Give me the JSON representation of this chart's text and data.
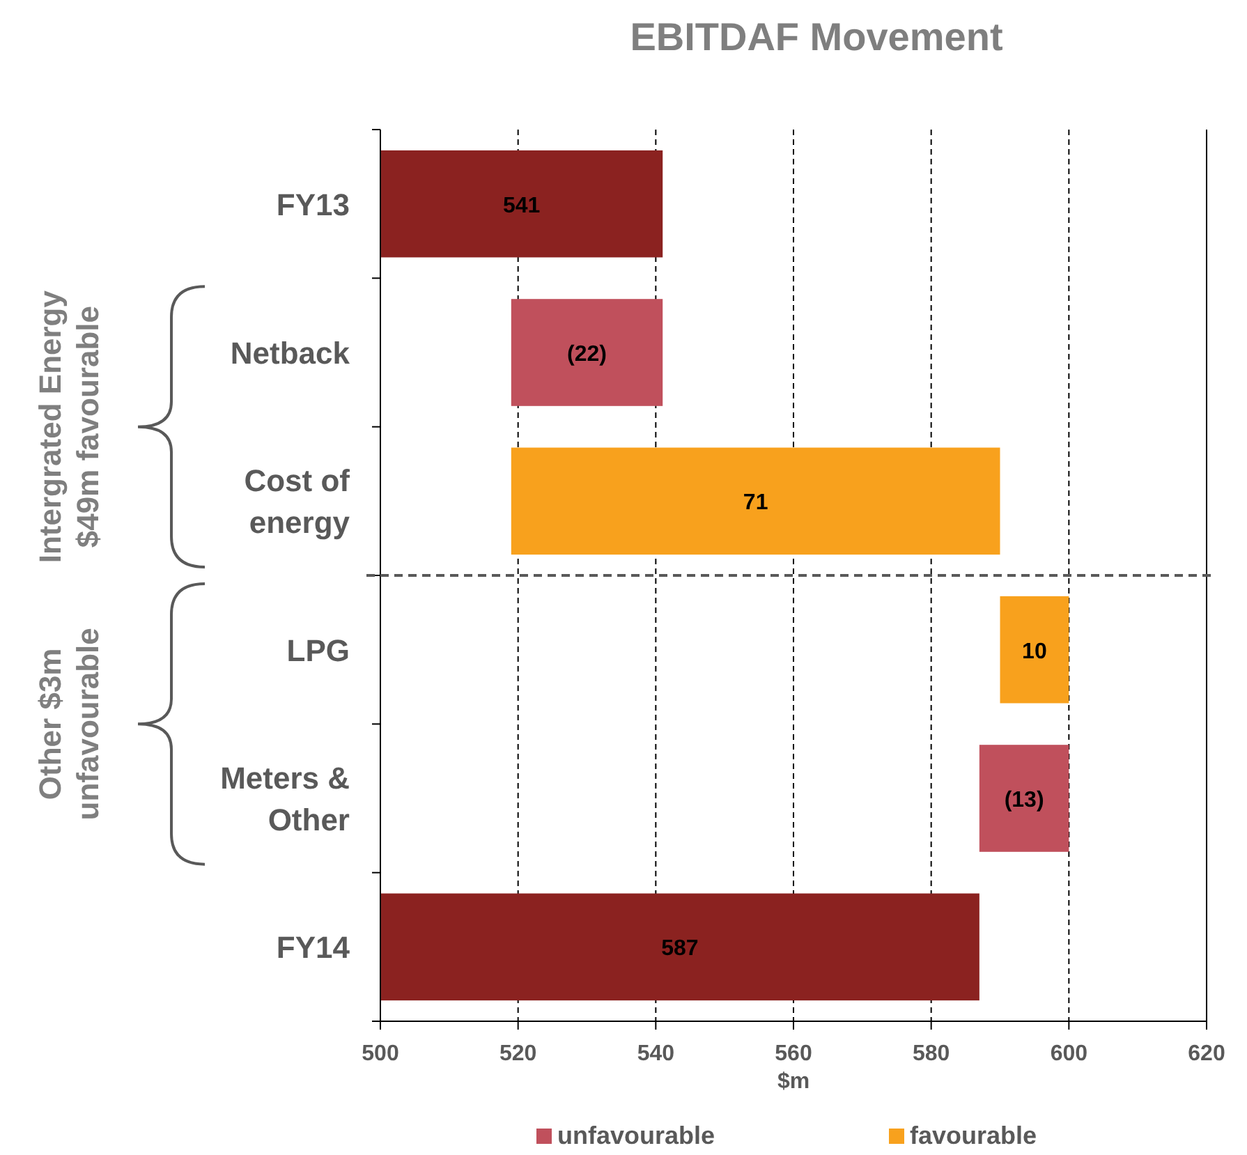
{
  "chart_data": {
    "type": "bar",
    "orientation": "horizontal",
    "title": "EBITDAF Movement",
    "xlabel": "$m",
    "categories": [
      "FY13",
      "Netback",
      "Cost of energy",
      "LPG",
      "Meters & Other",
      "FY14"
    ],
    "series": [
      {
        "color": "#8b2220",
        "values": [
          41,
          null,
          null,
          null,
          null,
          87
        ],
        "base": [
          500,
          null,
          null,
          null,
          null,
          500
        ],
        "value_labels": [
          "541",
          null,
          null,
          null,
          null,
          "587"
        ]
      },
      {
        "name": "unfavourable",
        "color": "#c0505c",
        "values": [
          null,
          -22,
          null,
          null,
          -13,
          null
        ],
        "base": [
          null,
          541,
          null,
          null,
          600,
          null
        ],
        "value_labels": [
          null,
          "(22)",
          null,
          null,
          "(13)",
          null
        ]
      },
      {
        "name": "favourable",
        "color": "#f8a11d",
        "values": [
          null,
          null,
          71,
          10,
          null,
          null
        ],
        "base": [
          null,
          null,
          519,
          590,
          null,
          null
        ],
        "value_labels": [
          null,
          null,
          "71",
          "10",
          null,
          null
        ]
      }
    ],
    "xlim": [
      500,
      620
    ],
    "xticks": [
      500,
      520,
      540,
      560,
      580,
      600,
      620
    ],
    "grid": "x",
    "legend": "bottom",
    "annotations": [
      "Intergrated Energy $49m favourable",
      "Other $3m unfavourable"
    ]
  }
}
